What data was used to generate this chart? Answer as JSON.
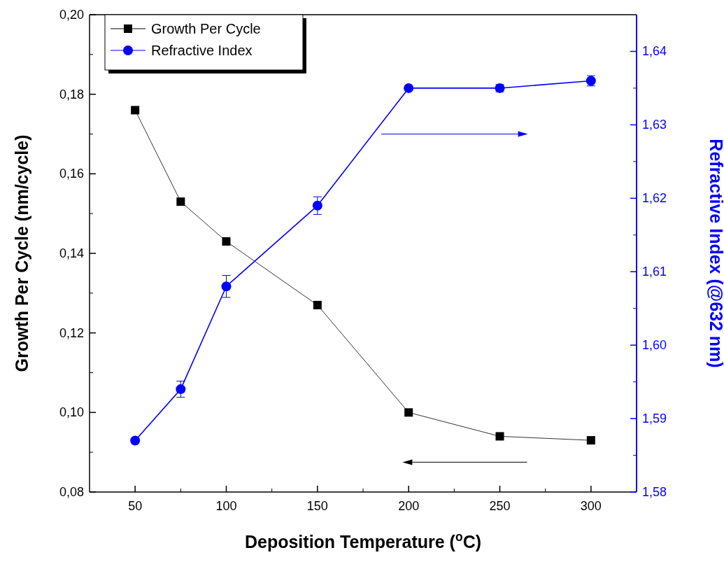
{
  "chart_data": {
    "type": "line",
    "xlabel": "Deposition Temperature ($^{o}$C)",
    "ylabel": "Growth Per Cycle (nm/cycle)",
    "y2label": "Refractive Index (@632 nm)",
    "x": [
      50,
      75,
      100,
      150,
      200,
      250,
      300
    ],
    "xlim": [
      25,
      325
    ],
    "xticks": [
      50,
      100,
      150,
      200,
      250,
      300
    ],
    "ylim": [
      0.08,
      0.2
    ],
    "yticks": [
      {
        "value": 0.08,
        "label": "0,08"
      },
      {
        "value": 0.1,
        "label": "0,10"
      },
      {
        "value": 0.12,
        "label": "0,12"
      },
      {
        "value": 0.14,
        "label": "0,14"
      },
      {
        "value": 0.16,
        "label": "0,16"
      },
      {
        "value": 0.18,
        "label": "0,18"
      },
      {
        "value": 0.2,
        "label": "0,20"
      }
    ],
    "y2lim": [
      1.58,
      1.645
    ],
    "y2ticks": [
      {
        "value": 1.58,
        "label": "1,58"
      },
      {
        "value": 1.59,
        "label": "1,59"
      },
      {
        "value": 1.6,
        "label": "1,60"
      },
      {
        "value": 1.61,
        "label": "1,61"
      },
      {
        "value": 1.62,
        "label": "1,62"
      },
      {
        "value": 1.63,
        "label": "1,63"
      },
      {
        "value": 1.64,
        "label": "1,64"
      }
    ],
    "series": [
      {
        "name": "Growth Per Cycle",
        "color": "#000000",
        "marker": "square",
        "values": [
          0.176,
          0.153,
          0.143,
          0.127,
          0.1,
          0.094,
          0.093
        ]
      },
      {
        "name": "Refractive Index",
        "color": "#0000ff",
        "marker": "circle",
        "axis": "y2",
        "values": [
          1.587,
          1.594,
          1.608,
          1.619,
          1.635,
          1.635,
          1.636
        ],
        "errors": [
          null,
          0.0011,
          0.0015,
          0.0012,
          null,
          0.0005,
          0.0007
        ]
      }
    ],
    "legend": "top left",
    "line_style": "solid"
  }
}
